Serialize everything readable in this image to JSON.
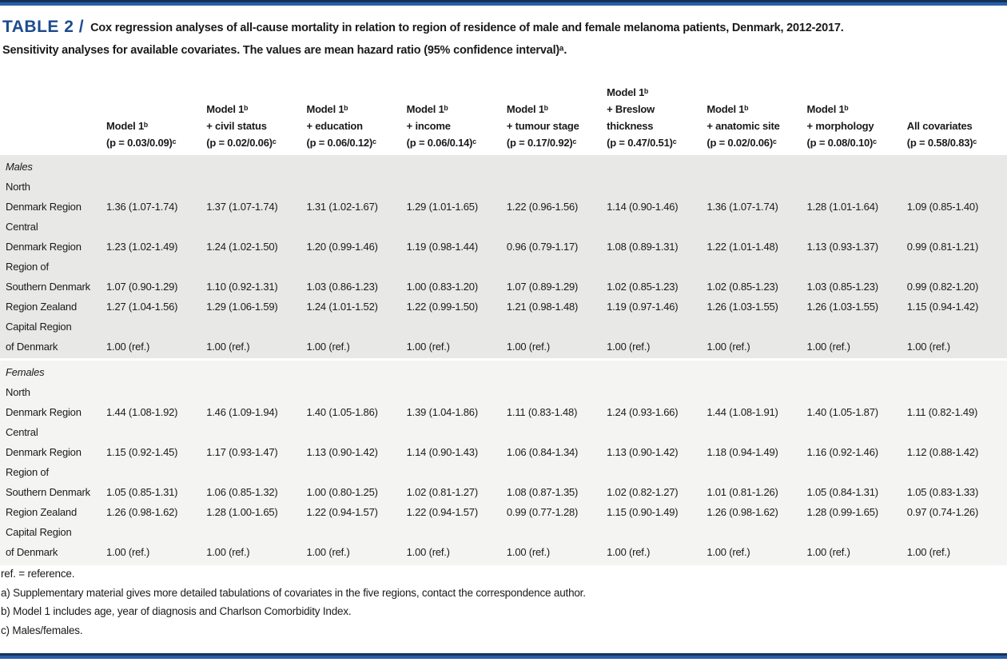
{
  "page": {
    "accent_color": "#1d4b8f",
    "males_band_color": "#e8e8e6",
    "females_band_color": "#f4f4f2"
  },
  "title": {
    "label": "TABLE 2 /",
    "line1": "Cox regression analyses of all-cause mortality in relation to region of residence of male and female melanoma patients, Denmark, 2012-2017.",
    "line2": "Sensitivity analyses for available covariates. The values are mean hazard ratio (95% confidence interval)ᵃ."
  },
  "table": {
    "column_headers": [
      {
        "lines": [
          "Model 1ᵇ",
          "(p = 0.03/0.09)ᶜ"
        ]
      },
      {
        "lines": [
          "Model 1ᵇ",
          "+ civil status",
          "(p = 0.02/0.06)ᶜ"
        ]
      },
      {
        "lines": [
          "Model 1ᵇ",
          "+ education",
          "(p = 0.06/0.12)ᶜ"
        ]
      },
      {
        "lines": [
          "Model 1ᵇ",
          "+ income",
          "(p = 0.06/0.14)ᶜ"
        ]
      },
      {
        "lines": [
          "Model 1ᵇ",
          "+ tumour stage",
          "(p = 0.17/0.92)ᶜ"
        ]
      },
      {
        "lines": [
          "Model 1ᵇ",
          "+ Breslow",
          "thickness",
          "(p = 0.47/0.51)ᶜ"
        ]
      },
      {
        "lines": [
          "Model 1ᵇ",
          "+ anatomic site",
          "(p = 0.02/0.06)ᶜ"
        ]
      },
      {
        "lines": [
          "Model 1ᵇ",
          "+ morphology",
          "(p = 0.08/0.10)ᶜ"
        ]
      },
      {
        "lines": [
          "All covariates",
          "(p = 0.58/0.83)ᶜ"
        ]
      }
    ],
    "sections": [
      {
        "label": "Males",
        "rows": [
          {
            "region_lines": [
              "North",
              "Denmark Region"
            ],
            "values": [
              "1.36 (1.07-1.74)",
              "1.37 (1.07-1.74)",
              "1.31 (1.02-1.67)",
              "1.29 (1.01-1.65)",
              "1.22 (0.96-1.56)",
              "1.14 (0.90-1.46)",
              "1.36 (1.07-1.74)",
              "1.28 (1.01-1.64)",
              "1.09 (0.85-1.40)"
            ]
          },
          {
            "region_lines": [
              "Central",
              "Denmark Region"
            ],
            "values": [
              "1.23 (1.02-1.49)",
              "1.24 (1.02-1.50)",
              "1.20 (0.99-1.46)",
              "1.19 (0.98-1.44)",
              "0.96 (0.79-1.17)",
              "1.08 (0.89-1.31)",
              "1.22 (1.01-1.48)",
              "1.13 (0.93-1.37)",
              "0.99 (0.81-1.21)"
            ]
          },
          {
            "region_lines": [
              "Region of",
              "Southern Denmark"
            ],
            "values": [
              "1.07 (0.90-1.29)",
              "1.10 (0.92-1.31)",
              "1.03 (0.86-1.23)",
              "1.00 (0.83-1.20)",
              "1.07 (0.89-1.29)",
              "1.02 (0.85-1.23)",
              "1.02 (0.85-1.23)",
              "1.03 (0.85-1.23)",
              "0.99 (0.82-1.20)"
            ]
          },
          {
            "region_lines": [
              "Region Zealand"
            ],
            "values": [
              "1.27 (1.04-1.56)",
              "1.29 (1.06-1.59)",
              "1.24 (1.01-1.52)",
              "1.22 (0.99-1.50)",
              "1.21 (0.98-1.48)",
              "1.19 (0.97-1.46)",
              "1.26 (1.03-1.55)",
              "1.26 (1.03-1.55)",
              "1.15 (0.94-1.42)"
            ]
          },
          {
            "region_lines": [
              "Capital Region",
              "of Denmark"
            ],
            "values": [
              "1.00 (ref.)",
              "1.00 (ref.)",
              "1.00 (ref.)",
              "1.00 (ref.)",
              "1.00 (ref.)",
              "1.00 (ref.)",
              "1.00 (ref.)",
              "1.00 (ref.)",
              "1.00 (ref.)"
            ]
          }
        ]
      },
      {
        "label": "Females",
        "rows": [
          {
            "region_lines": [
              "North",
              "Denmark Region"
            ],
            "values": [
              "1.44 (1.08-1.92)",
              "1.46 (1.09-1.94)",
              "1.40 (1.05-1.86)",
              "1.39 (1.04-1.86)",
              "1.11 (0.83-1.48)",
              "1.24 (0.93-1.66)",
              "1.44 (1.08-1.91)",
              "1.40 (1.05-1.87)",
              "1.11 (0.82-1.49)"
            ]
          },
          {
            "region_lines": [
              "Central",
              "Denmark Region"
            ],
            "values": [
              "1.15 (0.92-1.45)",
              "1.17 (0.93-1.47)",
              "1.13 (0.90-1.42)",
              "1.14 (0.90-1.43)",
              "1.06 (0.84-1.34)",
              "1.13 (0.90-1.42)",
              "1.18 (0.94-1.49)",
              "1.16 (0.92-1.46)",
              "1.12 (0.88-1.42)"
            ]
          },
          {
            "region_lines": [
              "Region of",
              "Southern Denmark"
            ],
            "values": [
              "1.05 (0.85-1.31)",
              "1.06 (0.85-1.32)",
              "1.00 (0.80-1.25)",
              "1.02 (0.81-1.27)",
              "1.08 (0.87-1.35)",
              "1.02 (0.82-1.27)",
              "1.01 (0.81-1.26)",
              "1.05 (0.84-1.31)",
              "1.05 (0.83-1.33)"
            ]
          },
          {
            "region_lines": [
              "Region Zealand"
            ],
            "values": [
              "1.26 (0.98-1.62)",
              "1.28 (1.00-1.65)",
              "1.22 (0.94-1.57)",
              "1.22 (0.94-1.57)",
              "0.99 (0.77-1.28)",
              "1.15 (0.90-1.49)",
              "1.26 (0.98-1.62)",
              "1.28 (0.99-1.65)",
              "0.97 (0.74-1.26)"
            ]
          },
          {
            "region_lines": [
              "Capital Region",
              "of Denmark"
            ],
            "values": [
              "1.00 (ref.)",
              "1.00 (ref.)",
              "1.00 (ref.)",
              "1.00 (ref.)",
              "1.00 (ref.)",
              "1.00 (ref.)",
              "1.00 (ref.)",
              "1.00 (ref.)",
              "1.00 (ref.)"
            ]
          }
        ]
      }
    ]
  },
  "footnotes": [
    "ref. = reference.",
    "a) Supplementary material gives more detailed tabulations of covariates in the five regions, contact the correspondence author.",
    "b) Model 1 includes age, year of diagnosis and Charlson Comorbidity Index.",
    "c) Males/females."
  ]
}
